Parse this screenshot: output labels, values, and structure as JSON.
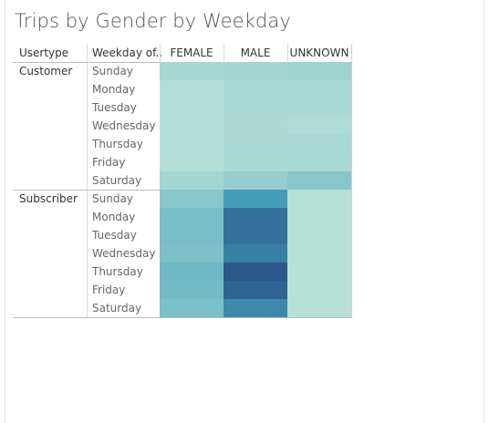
{
  "title": "Trips by Gender by Weekday",
  "headers": {
    "usertype": "Usertype",
    "weekday": "Weekday of..",
    "columns": [
      "FEMALE",
      "MALE",
      "UNKNOWN"
    ]
  },
  "groups": [
    {
      "usertype": "Customer",
      "days": [
        "Sunday",
        "Monday",
        "Tuesday",
        "Wednesday",
        "Thursday",
        "Friday",
        "Saturday"
      ]
    },
    {
      "usertype": "Subscriber",
      "days": [
        "Sunday",
        "Monday",
        "Tuesday",
        "Wednesday",
        "Thursday",
        "Friday",
        "Saturday"
      ]
    }
  ],
  "chart_data": {
    "type": "heatmap",
    "title": "Trips by Gender by Weekday",
    "row_dimensions": [
      "Usertype",
      "Weekday of.."
    ],
    "columns": [
      "FEMALE",
      "MALE",
      "UNKNOWN"
    ],
    "color_scale": {
      "low": "#c3e8da",
      "mid": "#46a1bb",
      "high": "#284f85"
    },
    "legend": "none",
    "note": "Relative intensity (0 = lightest, 1 = darkest) read from cell color; no numeric values are printed",
    "rows": [
      {
        "usertype": "Customer",
        "weekday": "Sunday",
        "values": [
          0.12,
          0.13,
          0.15
        ]
      },
      {
        "usertype": "Customer",
        "weekday": "Monday",
        "values": [
          0.07,
          0.1,
          0.1
        ]
      },
      {
        "usertype": "Customer",
        "weekday": "Tuesday",
        "values": [
          0.07,
          0.1,
          0.1
        ]
      },
      {
        "usertype": "Customer",
        "weekday": "Wednesday",
        "values": [
          0.06,
          0.09,
          0.08
        ]
      },
      {
        "usertype": "Customer",
        "weekday": "Thursday",
        "values": [
          0.07,
          0.1,
          0.11
        ]
      },
      {
        "usertype": "Customer",
        "weekday": "Friday",
        "values": [
          0.07,
          0.1,
          0.1
        ]
      },
      {
        "usertype": "Customer",
        "weekday": "Saturday",
        "values": [
          0.13,
          0.18,
          0.24
        ]
      },
      {
        "usertype": "Subscriber",
        "weekday": "Sunday",
        "values": [
          0.24,
          0.52,
          0.05
        ]
      },
      {
        "usertype": "Subscriber",
        "weekday": "Monday",
        "values": [
          0.3,
          0.8,
          0.05
        ]
      },
      {
        "usertype": "Subscriber",
        "weekday": "Tuesday",
        "values": [
          0.3,
          0.8,
          0.05
        ]
      },
      {
        "usertype": "Subscriber",
        "weekday": "Wednesday",
        "values": [
          0.28,
          0.7,
          0.05
        ]
      },
      {
        "usertype": "Subscriber",
        "weekday": "Thursday",
        "values": [
          0.34,
          0.95,
          0.05
        ]
      },
      {
        "usertype": "Subscriber",
        "weekday": "Friday",
        "values": [
          0.32,
          0.88,
          0.05
        ]
      },
      {
        "usertype": "Subscriber",
        "weekday": "Saturday",
        "values": [
          0.29,
          0.65,
          0.05
        ]
      }
    ]
  }
}
